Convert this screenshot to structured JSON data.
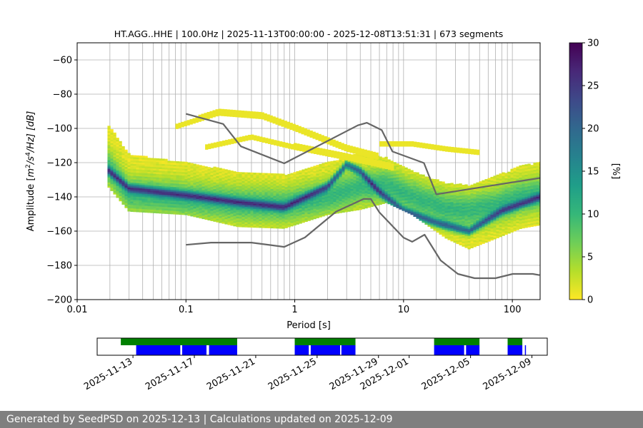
{
  "footer": "Generated by SeedPSD on 2025-12-13 | Calculations updated on 2025-12-09",
  "chart_data": [
    {
      "type": "heatmap",
      "title": "HT.AGG..HHE | 100.0Hz | 2025-11-13T00:00:00 - 2025-12-08T13:51:31 | 673 segments",
      "xlabel": "Period [s]",
      "ylabel_main": "Amplitude [",
      "ylabel_expr": "m",
      "ylabel_units": "/s",
      "ylabel_tail": "/Hz] [dB]",
      "ylabel_exp1": "2",
      "ylabel_exp2": "4",
      "x_scale": "log",
      "xlim": [
        0.01,
        180
      ],
      "ylim": [
        -200,
        -50
      ],
      "x_ticks": [
        {
          "value": 0.01,
          "label": "0.01"
        },
        {
          "value": 0.1,
          "label": "0.1"
        },
        {
          "value": 1,
          "label": "1"
        },
        {
          "value": 10,
          "label": "10"
        },
        {
          "value": 100,
          "label": "100"
        }
      ],
      "y_ticks": [
        {
          "value": -60,
          "label": "−60"
        },
        {
          "value": -80,
          "label": "−80"
        },
        {
          "value": -100,
          "label": "−100"
        },
        {
          "value": -120,
          "label": "−120"
        },
        {
          "value": -140,
          "label": "−140"
        },
        {
          "value": -160,
          "label": "−160"
        },
        {
          "value": -180,
          "label": "−180"
        },
        {
          "value": -200,
          "label": "−200"
        }
      ],
      "grid": true,
      "colorbar": {
        "label": "[%]",
        "range": [
          0,
          30
        ],
        "ticks": [
          {
            "value": 0,
            "label": "0"
          },
          {
            "value": 5,
            "label": "5"
          },
          {
            "value": 10,
            "label": "10"
          },
          {
            "value": 15,
            "label": "15"
          },
          {
            "value": 20,
            "label": "20"
          },
          {
            "value": 25,
            "label": "25"
          },
          {
            "value": 30,
            "label": "30"
          }
        ],
        "colors": [
          "#fde725",
          "#b5de2b",
          "#6ece58",
          "#35b779",
          "#1f9e89",
          "#26828e",
          "#31688e",
          "#3e4989",
          "#482878",
          "#440154"
        ]
      },
      "heatmap_bands": [
        {
          "name": "main",
          "period_start": 0.019,
          "period_end": 180,
          "lower": [
            [
              0.019,
              -133
            ],
            [
              0.03,
              -148
            ],
            [
              0.1,
              -150
            ],
            [
              0.3,
              -157
            ],
            [
              0.8,
              -158
            ],
            [
              2,
              -150
            ],
            [
              4,
              -147
            ],
            [
              7,
              -143
            ],
            [
              12,
              -150
            ],
            [
              25,
              -164
            ],
            [
              40,
              -170
            ],
            [
              70,
              -164
            ],
            [
              120,
              -158
            ],
            [
              180,
              -156
            ]
          ],
          "upper": [
            [
              0.019,
              -97
            ],
            [
              0.03,
              -115
            ],
            [
              0.1,
              -120
            ],
            [
              0.3,
              -125
            ],
            [
              0.8,
              -127
            ],
            [
              2,
              -120
            ],
            [
              4,
              -114
            ],
            [
              7,
              -117
            ],
            [
              12,
              -125
            ],
            [
              25,
              -132
            ],
            [
              40,
              -133
            ],
            [
              70,
              -128
            ],
            [
              120,
              -122
            ],
            [
              180,
              -120
            ]
          ],
          "mode": [
            [
              0.019,
              -124
            ],
            [
              0.03,
              -135
            ],
            [
              0.1,
              -139
            ],
            [
              0.3,
              -143
            ],
            [
              0.8,
              -146
            ],
            [
              2,
              -134
            ],
            [
              3,
              -121
            ],
            [
              4,
              -125
            ],
            [
              6,
              -137
            ],
            [
              10,
              -148
            ],
            [
              20,
              -155
            ],
            [
              40,
              -160
            ],
            [
              80,
              -148
            ],
            [
              180,
              -140
            ]
          ],
          "spread": [
            [
              0.019,
              -122
            ],
            [
              0.03,
              -138
            ],
            [
              0.1,
              -141
            ],
            [
              0.3,
              -144
            ],
            [
              0.8,
              -145
            ],
            [
              2,
              -140
            ],
            [
              4,
              -134
            ],
            [
              7,
              -133
            ],
            [
              12,
              -140
            ],
            [
              25,
              -147
            ],
            [
              40,
              -148
            ],
            [
              70,
              -145
            ],
            [
              120,
              -140
            ],
            [
              180,
              -138
            ]
          ]
        },
        {
          "name": "upper_arc",
          "lower": [
            [
              0.08,
              -100
            ],
            [
              0.2,
              -92
            ],
            [
              0.5,
              -94
            ],
            [
              1,
              -101
            ],
            [
              3,
              -113
            ],
            [
              6,
              -118
            ]
          ],
          "upper": [
            [
              0.08,
              -98
            ],
            [
              0.2,
              -88
            ],
            [
              0.5,
              -91
            ],
            [
              1,
              -98
            ],
            [
              3,
              -110
            ],
            [
              6,
              -115
            ]
          ]
        },
        {
          "name": "second_arc",
          "lower": [
            [
              0.15,
              -112
            ],
            [
              0.4,
              -106
            ],
            [
              1,
              -112
            ],
            [
              3,
              -118
            ],
            [
              8,
              -124
            ]
          ],
          "upper": [
            [
              0.15,
              -109
            ],
            [
              0.4,
              -104
            ],
            [
              1,
              -109
            ],
            [
              3,
              -115
            ],
            [
              8,
              -121
            ]
          ]
        },
        {
          "name": "high_tail",
          "lower": [
            [
              6,
              -110
            ],
            [
              12,
              -110
            ],
            [
              25,
              -113
            ],
            [
              50,
              -115
            ]
          ],
          "upper": [
            [
              6,
              -108
            ],
            [
              12,
              -108
            ],
            [
              25,
              -111
            ],
            [
              50,
              -113
            ]
          ]
        }
      ],
      "series": [
        {
          "values": [
            [
              0.1,
              -91.5
            ],
            [
              0.22,
              -97.4
            ],
            [
              0.32,
              -110.5
            ],
            [
              0.8,
              -120.4
            ],
            [
              3.8,
              -98.2
            ],
            [
              4.6,
              -96.7
            ],
            [
              6.3,
              -101
            ],
            [
              7.9,
              -113.5
            ],
            [
              15.4,
              -120.2
            ],
            [
              20,
              -138.5
            ],
            [
              354.8,
              -126
            ]
          ]
        },
        {
          "values": [
            [
              0.1,
              -168
            ],
            [
              0.17,
              -166.7
            ],
            [
              0.4,
              -166.7
            ],
            [
              0.8,
              -169.2
            ],
            [
              1.24,
              -163.7
            ],
            [
              2.4,
              -148.6
            ],
            [
              4.3,
              -141.2
            ],
            [
              5,
              -141.2
            ],
            [
              6,
              -149.1
            ],
            [
              10,
              -163.8
            ],
            [
              12,
              -166.2
            ],
            [
              15.6,
              -162.1
            ],
            [
              21.9,
              -177.1
            ],
            [
              31.6,
              -185
            ],
            [
              45,
              -187.5
            ],
            [
              70,
              -187.5
            ],
            [
              101,
              -185
            ],
            [
              154,
              -185
            ],
            [
              178,
              -185.7
            ]
          ]
        }
      ]
    },
    {
      "type": "timeline",
      "x_ticks": [
        {
          "value": "2025-11-13",
          "label": "2025-11-13"
        },
        {
          "value": "2025-11-17",
          "label": "2025-11-17"
        },
        {
          "value": "2025-11-21",
          "label": "2025-11-21"
        },
        {
          "value": "2025-11-25",
          "label": "2025-11-25"
        },
        {
          "value": "2025-11-29",
          "label": "2025-11-29"
        },
        {
          "value": "2025-12-01",
          "label": "2025-12-01"
        },
        {
          "value": "2025-12-05",
          "label": "2025-12-05"
        },
        {
          "value": "2025-12-09",
          "label": "2025-12-09"
        }
      ],
      "xlim": [
        "2025-11-10T16:00",
        "2025-12-10T00:00"
      ],
      "colors": {
        "available": "#008000",
        "used": "#0000ff"
      },
      "available": [
        [
          "2025-11-12T05:00",
          "2025-11-19T19:00"
        ],
        [
          "2025-11-23T13:00",
          "2025-11-27T12:00"
        ],
        [
          "2025-12-02T15:00",
          "2025-12-05T14:00"
        ],
        [
          "2025-12-07T10:00",
          "2025-12-08T09:00"
        ]
      ],
      "used": [
        [
          "2025-11-13T05:00",
          "2025-11-16T02:00"
        ],
        [
          "2025-11-16T05:00",
          "2025-11-17T19:00"
        ],
        [
          "2025-11-17T23:00",
          "2025-11-19T19:00"
        ],
        [
          "2025-11-23T13:00",
          "2025-11-24T11:00"
        ],
        [
          "2025-11-24T14:00",
          "2025-11-26T12:00"
        ],
        [
          "2025-11-26T14:00",
          "2025-11-27T12:00"
        ],
        [
          "2025-12-02T15:00",
          "2025-12-04T14:00"
        ],
        [
          "2025-12-04T17:00",
          "2025-12-05T14:00"
        ],
        [
          "2025-12-07T10:00",
          "2025-12-08T09:00"
        ],
        [
          "2025-12-08T13:00",
          "2025-12-08T14:00"
        ]
      ]
    }
  ]
}
